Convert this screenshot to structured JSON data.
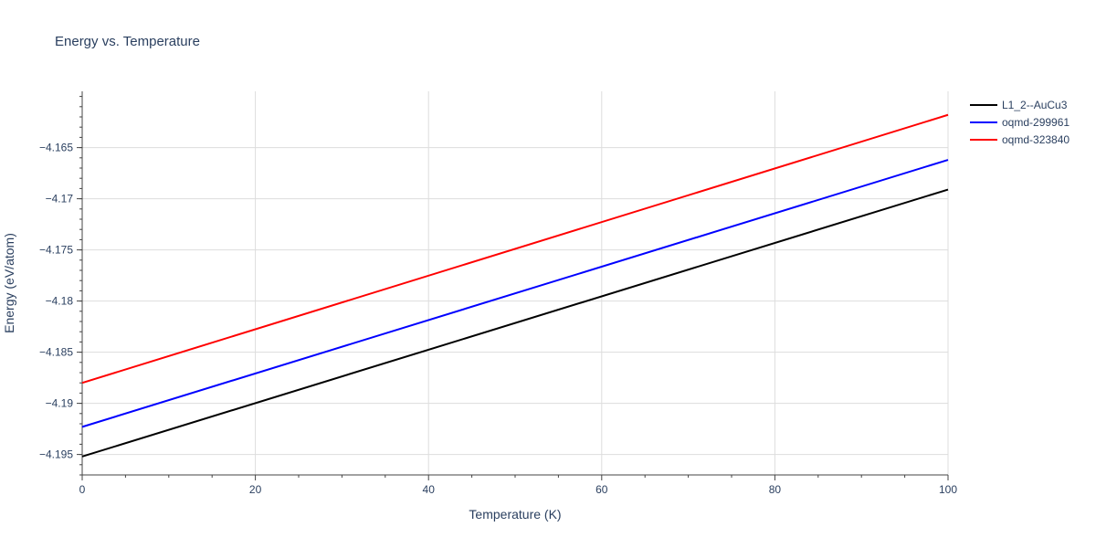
{
  "chart_data": {
    "type": "line",
    "title": "Energy vs. Temperature",
    "xlabel": "Temperature (K)",
    "ylabel": "Energy (eV/atom)",
    "xlim": [
      0,
      100
    ],
    "ylim": [
      -4.197,
      -4.1595
    ],
    "x_ticks": [
      0,
      20,
      40,
      60,
      80,
      100
    ],
    "x_tick_labels": [
      "0",
      "20",
      "40",
      "60",
      "80",
      "100"
    ],
    "y_ticks": [
      -4.195,
      -4.19,
      -4.185,
      -4.18,
      -4.175,
      -4.17,
      -4.165
    ],
    "y_tick_labels": [
      "−4.195",
      "−4.19",
      "−4.185",
      "−4.18",
      "−4.175",
      "−4.17",
      "−4.165"
    ],
    "grid": true,
    "legend_position": "top-right",
    "series": [
      {
        "name": "L1_2--AuCu3",
        "color": "#000000",
        "x": [
          0,
          100
        ],
        "y": [
          -4.1952,
          -4.1691
        ]
      },
      {
        "name": "oqmd-299961",
        "color": "#0000ff",
        "x": [
          0,
          100
        ],
        "y": [
          -4.1923,
          -4.1662
        ]
      },
      {
        "name": "oqmd-323840",
        "color": "#ff0000",
        "x": [
          0,
          100
        ],
        "y": [
          -4.188,
          -4.1618
        ]
      }
    ]
  }
}
